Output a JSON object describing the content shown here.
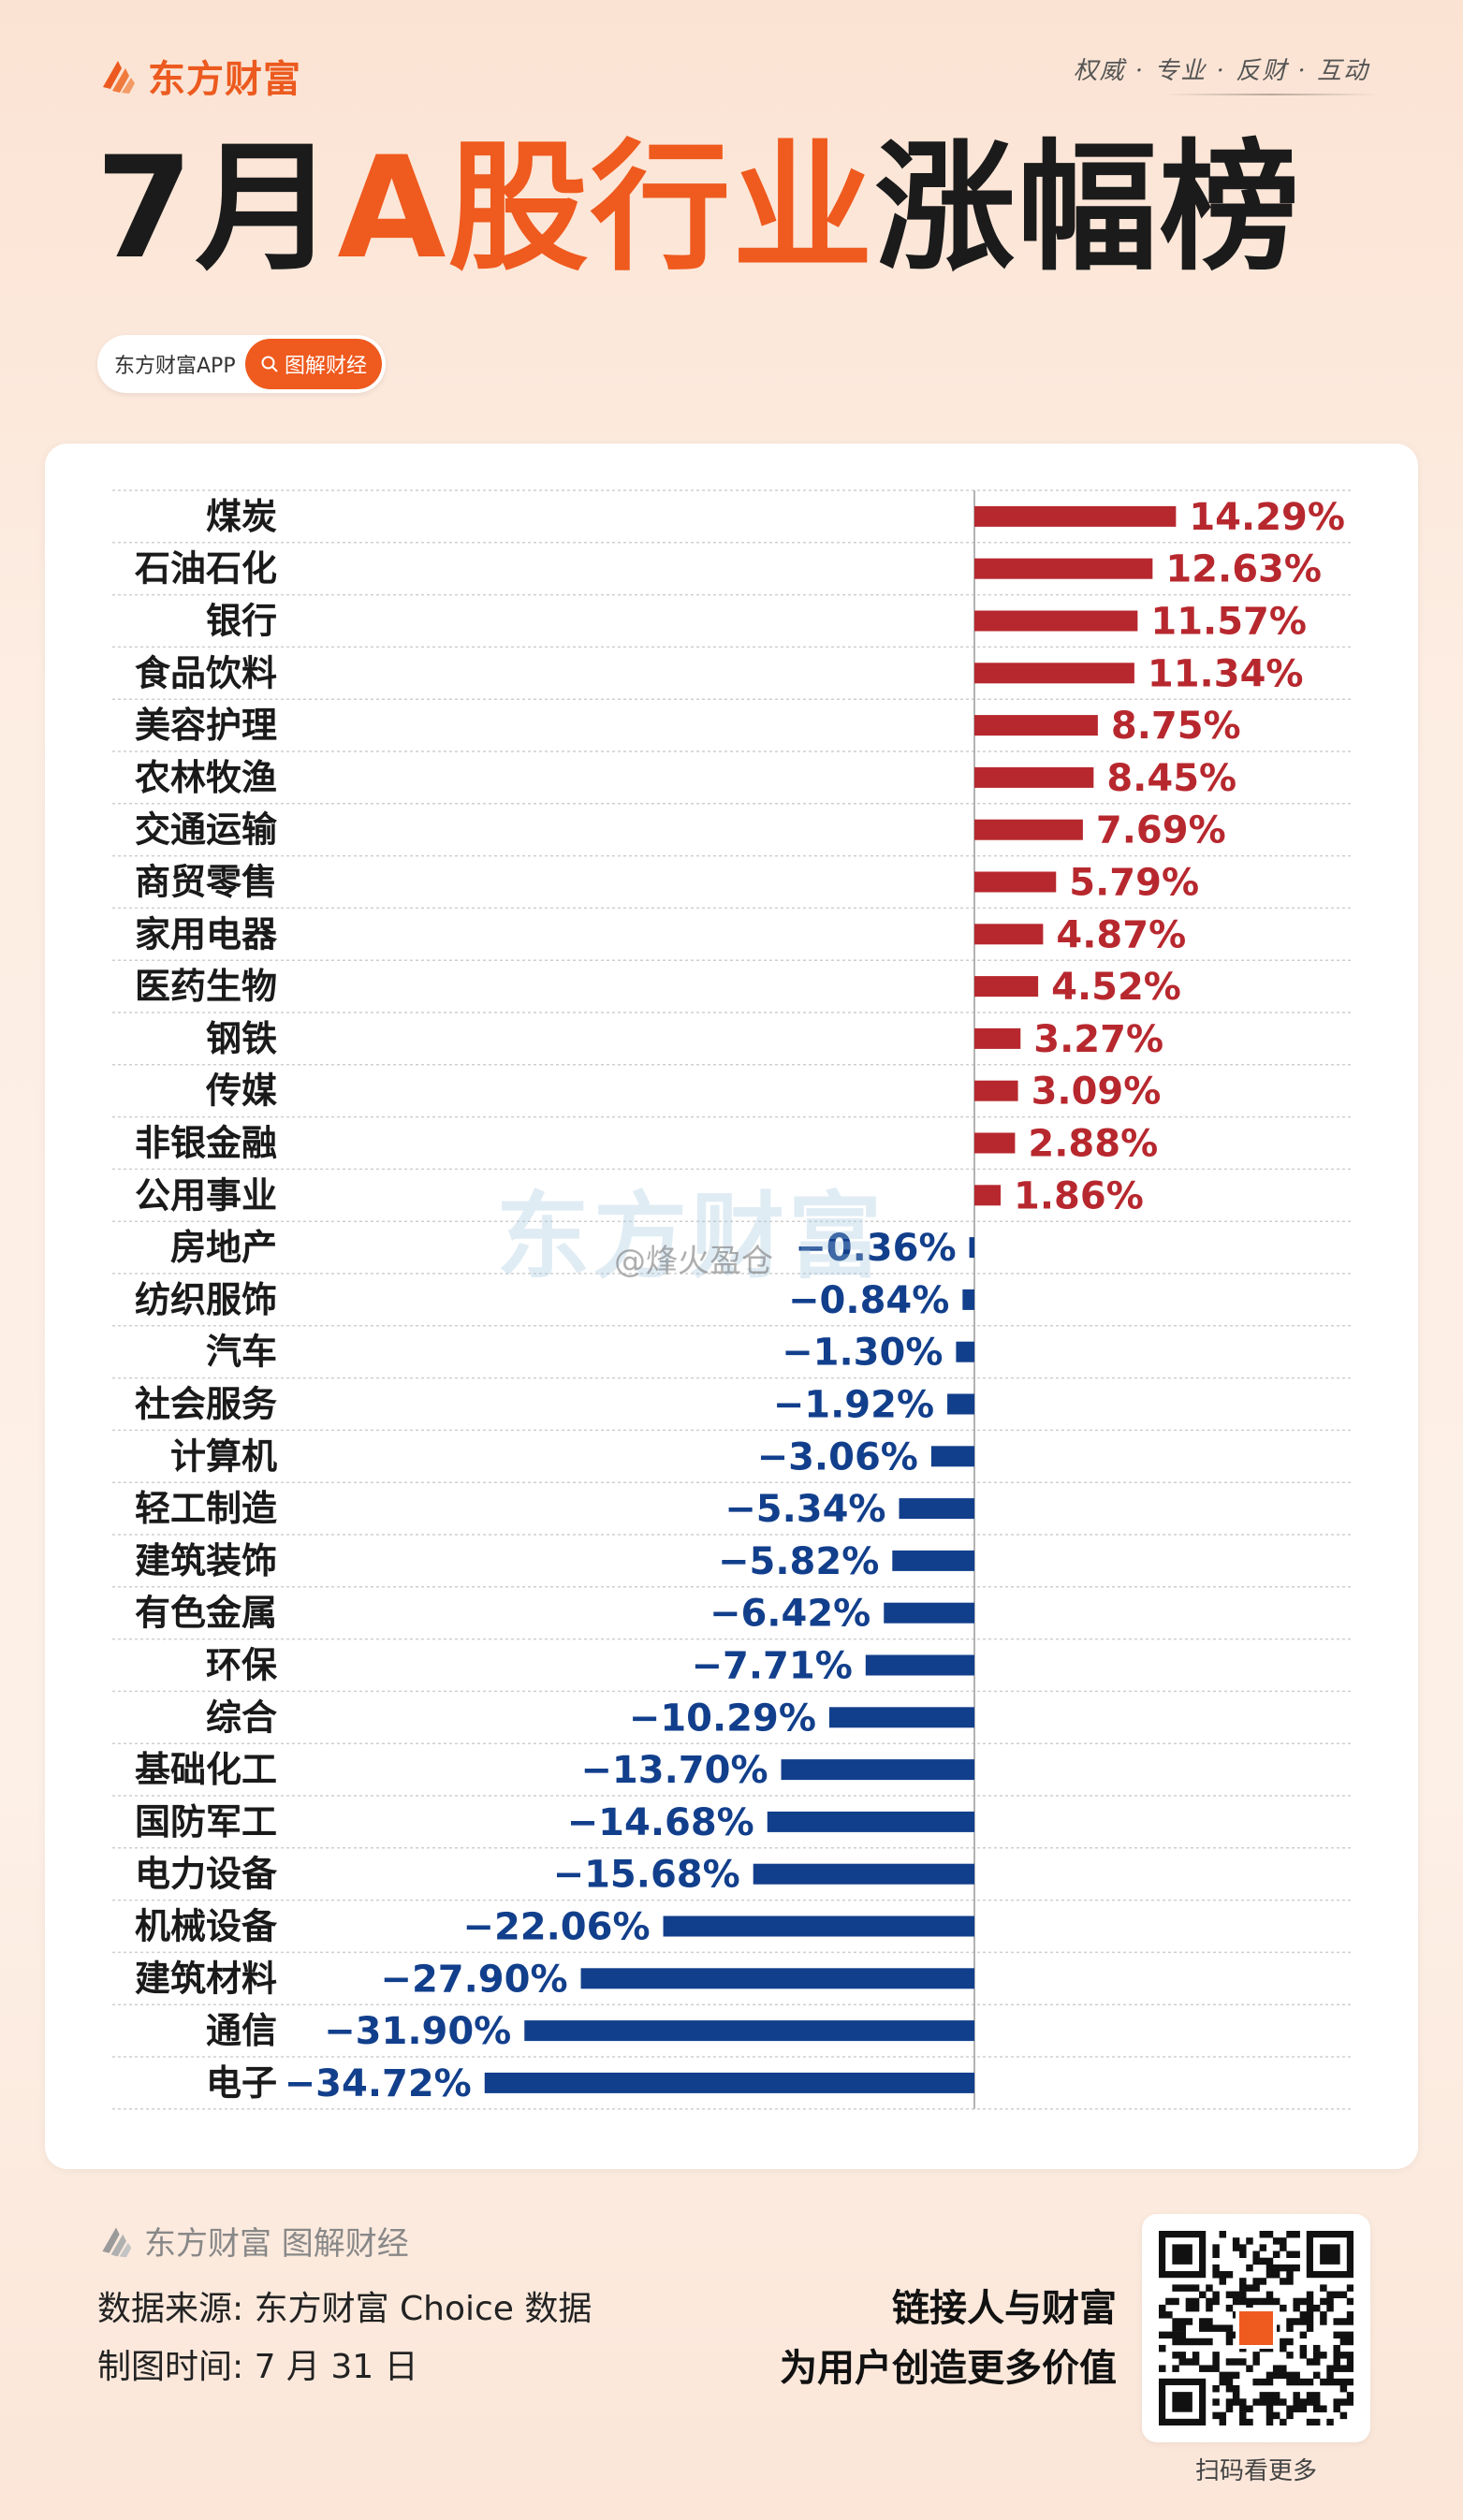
{
  "header": {
    "brand_name": "东方财富",
    "slogan": "权威 · 专业 · 反财 · 互动",
    "title_part1": "7月",
    "title_part2": "A股行业",
    "title_part3": "涨幅榜",
    "pill_app": "东方财富APP",
    "pill_button": "图解财经",
    "accent_color": "#ef5a1e"
  },
  "watermark": {
    "text": "东方财富",
    "weibo": "@烽火盈仓"
  },
  "chart_data": {
    "type": "bar",
    "orientation": "horizontal",
    "categories": [
      "煤炭",
      "石油石化",
      "银行",
      "食品饮料",
      "美容护理",
      "农林牧渔",
      "交通运输",
      "商贸零售",
      "家用电器",
      "医药生物",
      "钢铁",
      "传媒",
      "非银金融",
      "公用事业",
      "房地产",
      "纺织服饰",
      "汽车",
      "社会服务",
      "计算机",
      "轻工制造",
      "建筑装饰",
      "有色金属",
      "环保",
      "综合",
      "基础化工",
      "国防军工",
      "电力设备",
      "机械设备",
      "建筑材料",
      "通信",
      "电子"
    ],
    "values": [
      14.29,
      12.63,
      11.57,
      11.34,
      8.75,
      8.45,
      7.69,
      5.79,
      4.87,
      4.52,
      3.27,
      3.09,
      2.88,
      1.86,
      -0.36,
      -0.84,
      -1.3,
      -1.92,
      -3.06,
      -5.34,
      -5.82,
      -6.42,
      -7.71,
      -10.29,
      -13.7,
      -14.68,
      -15.68,
      -22.06,
      -27.9,
      -31.9,
      -34.72
    ],
    "labels": [
      "14.29%",
      "12.63%",
      "11.57%",
      "11.34%",
      "8.75%",
      "8.45%",
      "7.69%",
      "5.79%",
      "4.87%",
      "4.52%",
      "3.27%",
      "3.09%",
      "2.88%",
      "1.86%",
      "−0.36%",
      "−0.84%",
      "−1.30%",
      "−1.92%",
      "−3.06%",
      "−5.34%",
      "−5.82%",
      "−6.42%",
      "−7.71%",
      "−10.29%",
      "−13.70%",
      "−14.68%",
      "−15.68%",
      "−22.06%",
      "−27.90%",
      "−31.90%",
      "−34.72%"
    ],
    "positive_color": "#b7282e",
    "negative_color": "#123f8c",
    "grid": true
  },
  "footer": {
    "brand": "东方财富 图解财经",
    "source": "数据来源: 东方财富 Choice 数据",
    "time": "制图时间: 7 月 31 日",
    "tagline1": "链接人与财富",
    "tagline2": "为用户创造更多价值",
    "qr_caption": "扫码看更多"
  }
}
